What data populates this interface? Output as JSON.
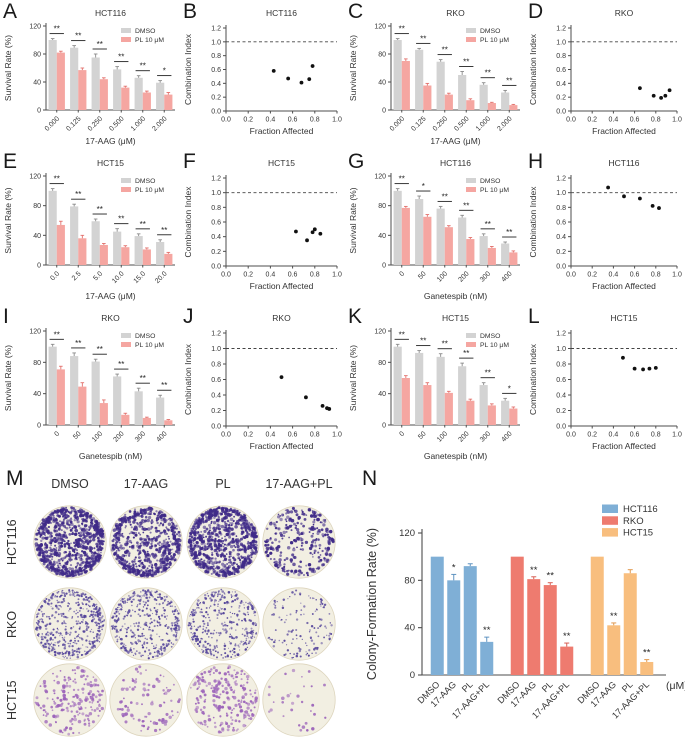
{
  "style": {
    "axis_color": "#4d4d4d",
    "text_color": "#333333",
    "point_color": "#111111",
    "dmso_gray": "#d3d3d3",
    "pl_pink": "#f5a6a1",
    "error_colors": [
      "#8a8a8a",
      "#e2706b"
    ],
    "n_error_colors": [
      "#5f93c0",
      "#d85f54",
      "#e0984e"
    ],
    "colony_bg": "#f2efe2",
    "hct116_blue": "#7fafd6",
    "rko_red": "#ee7b6f",
    "hct15_orange": "#f8be7e"
  },
  "chart_data": [
    {
      "panel": "A",
      "type": "bar",
      "title": "HCT116",
      "xlabel": "17-AAG (μM)",
      "ylabel": "Survival Rate (%)",
      "ylim": [
        0,
        120
      ],
      "yticks": [
        "0",
        "40",
        "80",
        "120"
      ],
      "categories": [
        "0.000",
        "0.125",
        "0.250",
        "0.500",
        "1.000",
        "2.000"
      ],
      "series": [
        {
          "name": "DMSO",
          "color": "#d3d3d3",
          "values": [
            100,
            89,
            75,
            58,
            46,
            39
          ],
          "errors": [
            2,
            3,
            5,
            4,
            3,
            3
          ]
        },
        {
          "name": "PL 10 μM",
          "color": "#f5a6a1",
          "values": [
            82,
            57,
            44,
            32,
            25,
            22
          ],
          "errors": [
            2,
            3,
            2,
            2,
            2,
            3
          ]
        }
      ],
      "significance": [
        "**",
        "**",
        "**",
        "**",
        "**",
        "*"
      ]
    },
    {
      "panel": "B",
      "type": "scatter",
      "title": "HCT116",
      "xlabel": "Fraction Affected",
      "ylabel": "Combination Index",
      "xlim": [
        0,
        1
      ],
      "ylim": [
        0,
        1.2
      ],
      "xticks": [
        "0.0",
        "0.2",
        "0.4",
        "0.6",
        "0.8",
        "1.0"
      ],
      "yticks": [
        "0.0",
        "0.2",
        "0.4",
        "0.6",
        "0.8",
        "1.0",
        "1.2"
      ],
      "reference_line_y": 1.0,
      "points": [
        [
          0.43,
          0.58
        ],
        [
          0.56,
          0.47
        ],
        [
          0.68,
          0.41
        ],
        [
          0.75,
          0.46
        ],
        [
          0.78,
          0.65
        ]
      ]
    },
    {
      "panel": "C",
      "type": "bar",
      "title": "RKO",
      "xlabel": "17-AAG (μM)",
      "ylabel": "Survival Rate (%)",
      "ylim": [
        0,
        120
      ],
      "yticks": [
        "0",
        "40",
        "80",
        "120"
      ],
      "categories": [
        "0.000",
        "0.125",
        "0.250",
        "0.500",
        "1.000",
        "2.000"
      ],
      "series": [
        {
          "name": "DMSO",
          "color": "#d3d3d3",
          "values": [
            100,
            86,
            69,
            50,
            36,
            25
          ],
          "errors": [
            2,
            2,
            3,
            5,
            3,
            3
          ]
        },
        {
          "name": "PL 10 μM",
          "color": "#f5a6a1",
          "values": [
            70,
            35,
            22,
            14,
            10,
            7
          ],
          "errors": [
            3,
            3,
            2,
            2,
            1,
            1
          ]
        }
      ],
      "significance": [
        "**",
        "**",
        "**",
        "**",
        "**",
        "**"
      ]
    },
    {
      "panel": "D",
      "type": "scatter",
      "title": "RKO",
      "xlabel": "Fraction Affected",
      "ylabel": "Combination Index",
      "xlim": [
        0,
        1
      ],
      "ylim": [
        0,
        1.2
      ],
      "xticks": [
        "0.0",
        "0.2",
        "0.4",
        "0.6",
        "0.8",
        "1.0"
      ],
      "yticks": [
        "0.0",
        "0.2",
        "0.4",
        "0.6",
        "0.8",
        "1.0",
        "1.2"
      ],
      "reference_line_y": 1.0,
      "points": [
        [
          0.65,
          0.33
        ],
        [
          0.78,
          0.22
        ],
        [
          0.85,
          0.19
        ],
        [
          0.89,
          0.22
        ],
        [
          0.93,
          0.3
        ]
      ]
    },
    {
      "panel": "E",
      "type": "bar",
      "title": "HCT15",
      "xlabel": "17-AAG (μM)",
      "ylabel": "Survival Rate (%)",
      "ylim": [
        0,
        120
      ],
      "yticks": [
        "0",
        "40",
        "80",
        "120"
      ],
      "categories": [
        "0.0",
        "2.5",
        "5.0",
        "10.0",
        "15.0",
        "20.0"
      ],
      "series": [
        {
          "name": "DMSO",
          "color": "#d3d3d3",
          "values": [
            100,
            79,
            59,
            45,
            39,
            31
          ],
          "errors": [
            3,
            3,
            3,
            4,
            3,
            3
          ]
        },
        {
          "name": "PL 10 μM",
          "color": "#f5a6a1",
          "values": [
            54,
            36,
            27,
            24,
            21,
            15
          ],
          "errors": [
            5,
            4,
            2,
            2,
            2,
            2
          ]
        }
      ],
      "significance": [
        "**",
        "**",
        "**",
        "**",
        "**",
        "**"
      ]
    },
    {
      "panel": "F",
      "type": "scatter",
      "title": "HCT15",
      "xlabel": "Fraction Affected",
      "ylabel": "Combination Index",
      "xlim": [
        0,
        1
      ],
      "ylim": [
        0,
        1.2
      ],
      "xticks": [
        "0.0",
        "0.2",
        "0.4",
        "0.6",
        "0.8",
        "1.0"
      ],
      "yticks": [
        "0.0",
        "0.2",
        "0.4",
        "0.6",
        "0.8",
        "1.0",
        "1.2"
      ],
      "reference_line_y": 1.0,
      "points": [
        [
          0.63,
          0.47
        ],
        [
          0.73,
          0.35
        ],
        [
          0.78,
          0.46
        ],
        [
          0.8,
          0.5
        ],
        [
          0.85,
          0.44
        ]
      ]
    },
    {
      "panel": "G",
      "type": "bar",
      "title": "HCT116",
      "xlabel": "Ganetespib (nM)",
      "ylabel": "Survival Rate (%)",
      "ylim": [
        0,
        120
      ],
      "yticks": [
        "0",
        "40",
        "80",
        "120"
      ],
      "categories": [
        "0",
        "50",
        "100",
        "200",
        "300",
        "400"
      ],
      "series": [
        {
          "name": "DMSO",
          "color": "#d3d3d3",
          "values": [
            100,
            89,
            76,
            64,
            39,
            29
          ],
          "errors": [
            3,
            4,
            3,
            3,
            3,
            2
          ]
        },
        {
          "name": "PL 10 μM",
          "color": "#f5a6a1",
          "values": [
            77,
            65,
            51,
            35,
            23,
            17
          ],
          "errors": [
            2,
            3,
            2,
            2,
            2,
            2
          ]
        }
      ],
      "significance": [
        "**",
        "*",
        "**",
        "**",
        "**",
        "**"
      ]
    },
    {
      "panel": "H",
      "type": "scatter",
      "title": "HCT116",
      "xlabel": "Fraction Affected",
      "ylabel": "Combination Index",
      "xlim": [
        0,
        1
      ],
      "ylim": [
        0,
        1.2
      ],
      "xticks": [
        "0.0",
        "0.2",
        "0.4",
        "0.6",
        "0.8",
        "1.0"
      ],
      "yticks": [
        "0.0",
        "0.2",
        "0.4",
        "0.6",
        "0.8",
        "1.0",
        "1.2"
      ],
      "reference_line_y": 1.0,
      "points": [
        [
          0.35,
          1.07
        ],
        [
          0.5,
          0.95
        ],
        [
          0.65,
          0.92
        ],
        [
          0.77,
          0.82
        ],
        [
          0.83,
          0.79
        ]
      ]
    },
    {
      "panel": "I",
      "type": "bar",
      "title": "RKO",
      "xlabel": "Ganetespib (nM)",
      "ylabel": "Survival Rate (%)",
      "ylim": [
        0,
        120
      ],
      "yticks": [
        "0",
        "40",
        "80",
        "120"
      ],
      "categories": [
        "0",
        "50",
        "100",
        "200",
        "300",
        "400"
      ],
      "series": [
        {
          "name": "DMSO",
          "color": "#d3d3d3",
          "values": [
            100,
            88,
            81,
            62,
            43,
            35
          ],
          "errors": [
            3,
            4,
            3,
            3,
            4,
            3
          ]
        },
        {
          "name": "PL 10 μM",
          "color": "#f5a6a1",
          "values": [
            71,
            49,
            28,
            13,
            9,
            6
          ],
          "errors": [
            4,
            5,
            4,
            2,
            1,
            1
          ]
        }
      ],
      "significance": [
        "**",
        "**",
        "**",
        "**",
        "**",
        "**"
      ]
    },
    {
      "panel": "J",
      "type": "scatter",
      "title": "RKO",
      "xlabel": "Fraction Affected",
      "ylabel": "Combination Index",
      "xlim": [
        0,
        1
      ],
      "ylim": [
        0,
        1.2
      ],
      "xticks": [
        "0.0",
        "0.2",
        "0.4",
        "0.6",
        "0.8",
        "1.0"
      ],
      "yticks": [
        "0.0",
        "0.2",
        "0.4",
        "0.6",
        "0.8",
        "1.0",
        "1.2"
      ],
      "reference_line_y": 1.0,
      "points": [
        [
          0.5,
          0.63
        ],
        [
          0.72,
          0.37
        ],
        [
          0.87,
          0.26
        ],
        [
          0.91,
          0.23
        ],
        [
          0.93,
          0.22
        ]
      ]
    },
    {
      "panel": "K",
      "type": "bar",
      "title": "HCT15",
      "xlabel": "Ganetespib (nM)",
      "ylabel": "Survival Rate (%)",
      "ylim": [
        0,
        120
      ],
      "yticks": [
        "0",
        "40",
        "80",
        "120"
      ],
      "categories": [
        "0",
        "50",
        "100",
        "200",
        "300",
        "400"
      ],
      "series": [
        {
          "name": "DMSO",
          "color": "#d3d3d3",
          "values": [
            100,
            92,
            87,
            75,
            51,
            31
          ],
          "errors": [
            3,
            3,
            4,
            4,
            3,
            3
          ]
        },
        {
          "name": "PL 10 μM",
          "color": "#f5a6a1",
          "values": [
            60,
            51,
            41,
            31,
            25,
            21
          ],
          "errors": [
            3,
            3,
            2,
            2,
            2,
            2
          ]
        }
      ],
      "significance": [
        "**",
        "**",
        "**",
        "**",
        "**",
        "*"
      ]
    },
    {
      "panel": "L",
      "type": "scatter",
      "title": "HCT15",
      "xlabel": "Fraction Affected",
      "ylabel": "Combination Index",
      "xlim": [
        0,
        1
      ],
      "ylim": [
        0,
        1.2
      ],
      "xticks": [
        "0.0",
        "0.2",
        "0.4",
        "0.6",
        "0.8",
        "1.0"
      ],
      "yticks": [
        "0.0",
        "0.2",
        "0.4",
        "0.6",
        "0.8",
        "1.0",
        "1.2"
      ],
      "reference_line_y": 1.0,
      "points": [
        [
          0.49,
          0.88
        ],
        [
          0.6,
          0.74
        ],
        [
          0.68,
          0.73
        ],
        [
          0.74,
          0.74
        ],
        [
          0.8,
          0.75
        ]
      ]
    },
    {
      "panel": "M",
      "type": "colony_assay_grid",
      "col_labels": [
        "DMSO",
        "17-AAG",
        "PL",
        "17-AAG+PL"
      ],
      "row_labels": [
        "HCT116",
        "RKO",
        "HCT15"
      ],
      "dot_colors": [
        "#3f2a88",
        "#55459b",
        "#9c64ba"
      ],
      "relative_density": [
        [
          0.95,
          0.72,
          0.88,
          0.3
        ],
        [
          0.55,
          0.45,
          0.42,
          0.15
        ],
        [
          0.3,
          0.15,
          0.35,
          0.05
        ]
      ]
    },
    {
      "panel": "N",
      "type": "bar_grouped",
      "ylabel": "Colony-Formation Rate (%)",
      "x_unit": "(μM)",
      "ylim": [
        0,
        120
      ],
      "yticks": [
        "0",
        "40",
        "80",
        "120"
      ],
      "categories": [
        "DMSO",
        "17-AAG",
        "PL",
        "17-AAG+PL"
      ],
      "groups": [
        {
          "name": "HCT116",
          "color": "#7fafd6",
          "values": [
            100,
            80,
            92,
            28
          ],
          "errors": [
            0,
            5,
            2,
            4
          ],
          "significance": [
            "",
            "*",
            "",
            "**"
          ]
        },
        {
          "name": "RKO",
          "color": "#ee7b6f",
          "values": [
            100,
            81,
            76,
            24
          ],
          "errors": [
            0,
            2,
            2,
            3
          ],
          "significance": [
            "",
            "**",
            "**",
            "**"
          ]
        },
        {
          "name": "HCT15",
          "color": "#f8be7e",
          "values": [
            100,
            42,
            86,
            11
          ],
          "errors": [
            0,
            2,
            3,
            2
          ],
          "significance": [
            "",
            "**",
            "",
            "**"
          ]
        }
      ]
    }
  ]
}
